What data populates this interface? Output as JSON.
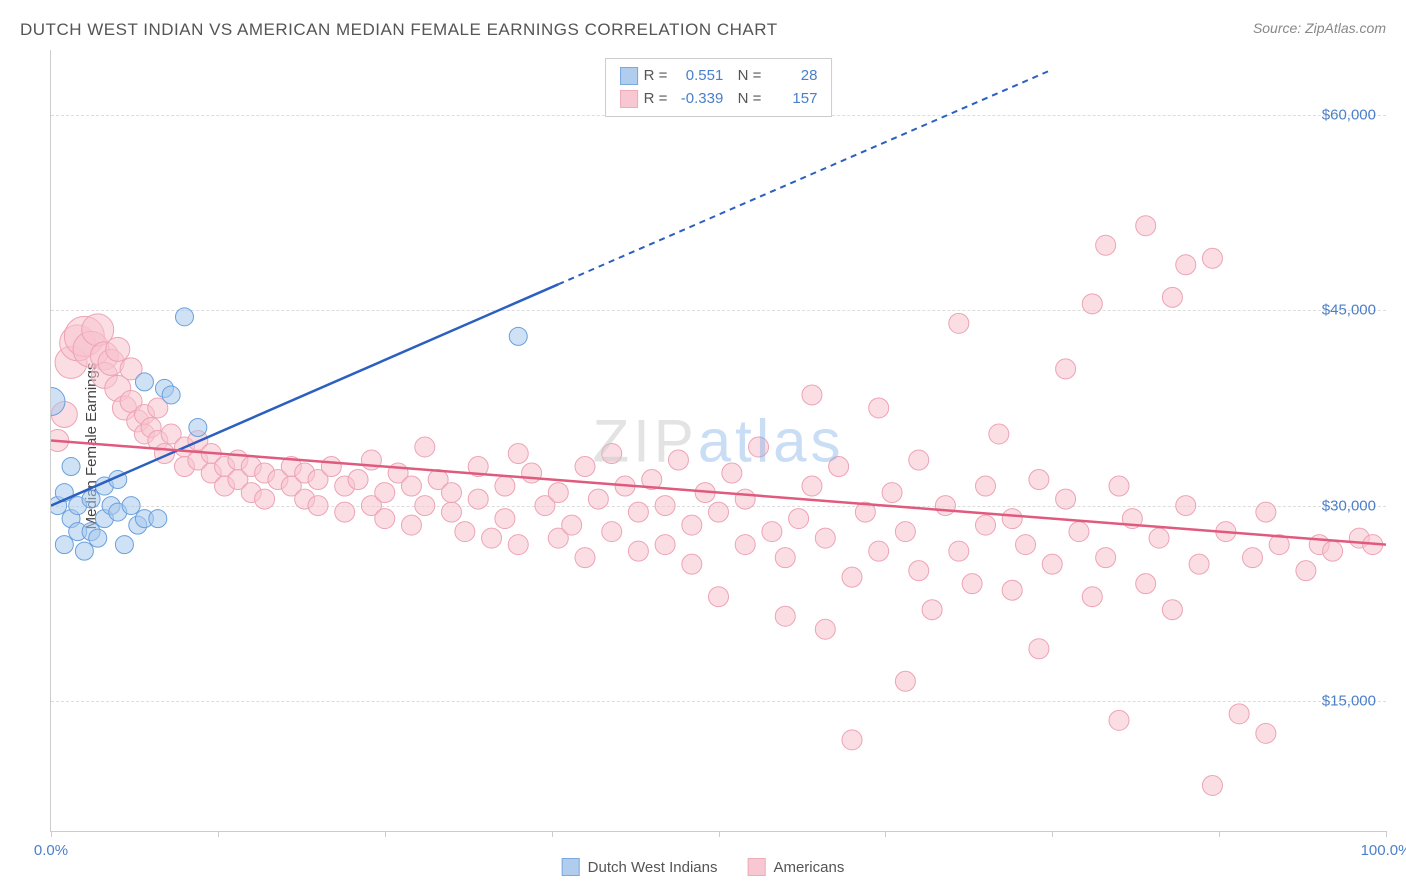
{
  "title": "DUTCH WEST INDIAN VS AMERICAN MEDIAN FEMALE EARNINGS CORRELATION CHART",
  "source": "Source: ZipAtlas.com",
  "watermark_main": "ZIP",
  "watermark_sub": "atlas",
  "ylabel": "Median Female Earnings",
  "chart": {
    "type": "scatter-correlation",
    "background_color": "#ffffff",
    "grid_color": "#dddddd",
    "axis_color": "#cccccc",
    "tick_label_color": "#4a7fc9",
    "text_color": "#555555",
    "xlim": [
      0,
      100
    ],
    "ylim": [
      5000,
      65000
    ],
    "y_ticks": [
      15000,
      30000,
      45000,
      60000
    ],
    "y_tick_labels": [
      "$15,000",
      "$30,000",
      "$45,000",
      "$60,000"
    ],
    "x_minor_ticks": [
      0,
      12.5,
      25,
      37.5,
      50,
      62.5,
      75,
      87.5,
      100
    ],
    "x_tick_labels_left": "0.0%",
    "x_tick_labels_right": "100.0%",
    "series": [
      {
        "name": "Dutch West Indians",
        "fill_color": "#a8c8ed",
        "fill_opacity": 0.55,
        "stroke_color": "#6aa0de",
        "line_color": "#2b5fc0",
        "marker_radius": 9,
        "r_value": "0.551",
        "n_value": "28",
        "trend": {
          "x1": 0,
          "y1": 30000,
          "x2": 38,
          "y2": 47000,
          "x2_ext": 75,
          "y2_ext": 63500,
          "dash": "6,5"
        },
        "points": [
          [
            0,
            38000,
            14
          ],
          [
            0.5,
            30000,
            9
          ],
          [
            1,
            31000,
            9
          ],
          [
            1,
            27000,
            9
          ],
          [
            1.5,
            29000,
            9
          ],
          [
            1.5,
            33000,
            9
          ],
          [
            2,
            28000,
            9
          ],
          [
            2,
            30000,
            9
          ],
          [
            2.5,
            26500,
            9
          ],
          [
            3,
            30500,
            9
          ],
          [
            3,
            28000,
            9
          ],
          [
            3.5,
            27500,
            9
          ],
          [
            4,
            29000,
            9
          ],
          [
            4,
            31500,
            9
          ],
          [
            4.5,
            30000,
            9
          ],
          [
            5,
            32000,
            9
          ],
          [
            5,
            29500,
            9
          ],
          [
            5.5,
            27000,
            9
          ],
          [
            6,
            30000,
            9
          ],
          [
            6.5,
            28500,
            9
          ],
          [
            7,
            29000,
            9
          ],
          [
            7,
            39500,
            9
          ],
          [
            8,
            29000,
            9
          ],
          [
            8.5,
            39000,
            9
          ],
          [
            9,
            38500,
            9
          ],
          [
            10,
            44500,
            9
          ],
          [
            11,
            36000,
            9
          ],
          [
            35,
            43000,
            9
          ]
        ]
      },
      {
        "name": "Americans",
        "fill_color": "#f7c2ce",
        "fill_opacity": 0.55,
        "stroke_color": "#eda3b4",
        "line_color": "#e05a7e",
        "marker_radius": 10,
        "r_value": "-0.339",
        "n_value": "157",
        "trend": {
          "x1": 0,
          "y1": 35000,
          "x2": 100,
          "y2": 27000
        },
        "points": [
          [
            0.5,
            35000,
            11
          ],
          [
            1,
            37000,
            13
          ],
          [
            1.5,
            41000,
            16
          ],
          [
            2,
            42500,
            18
          ],
          [
            2.5,
            43000,
            20
          ],
          [
            3,
            42000,
            18
          ],
          [
            3.5,
            43500,
            16
          ],
          [
            4,
            41500,
            14
          ],
          [
            4,
            40000,
            13
          ],
          [
            4.5,
            41000,
            13
          ],
          [
            5,
            39000,
            13
          ],
          [
            5,
            42000,
            12
          ],
          [
            5.5,
            37500,
            12
          ],
          [
            6,
            38000,
            11
          ],
          [
            6,
            40500,
            11
          ],
          [
            6.5,
            36500,
            11
          ],
          [
            7,
            37000,
            10
          ],
          [
            7,
            35500,
            10
          ],
          [
            7.5,
            36000,
            10
          ],
          [
            8,
            35000,
            10
          ],
          [
            8,
            37500,
            10
          ],
          [
            8.5,
            34000,
            10
          ],
          [
            9,
            35500,
            10
          ],
          [
            10,
            34500,
            10
          ],
          [
            10,
            33000,
            10
          ],
          [
            11,
            33500,
            10
          ],
          [
            11,
            35000,
            10
          ],
          [
            12,
            34000,
            10
          ],
          [
            12,
            32500,
            10
          ],
          [
            13,
            33000,
            10
          ],
          [
            13,
            31500,
            10
          ],
          [
            14,
            33500,
            10
          ],
          [
            14,
            32000,
            10
          ],
          [
            15,
            33000,
            10
          ],
          [
            15,
            31000,
            10
          ],
          [
            16,
            32500,
            10
          ],
          [
            16,
            30500,
            10
          ],
          [
            17,
            32000,
            10
          ],
          [
            18,
            31500,
            10
          ],
          [
            18,
            33000,
            10
          ],
          [
            19,
            30500,
            10
          ],
          [
            19,
            32500,
            10
          ],
          [
            20,
            32000,
            10
          ],
          [
            20,
            30000,
            10
          ],
          [
            21,
            33000,
            10
          ],
          [
            22,
            31500,
            10
          ],
          [
            22,
            29500,
            10
          ],
          [
            23,
            32000,
            10
          ],
          [
            24,
            30000,
            10
          ],
          [
            24,
            33500,
            10
          ],
          [
            25,
            31000,
            10
          ],
          [
            25,
            29000,
            10
          ],
          [
            26,
            32500,
            10
          ],
          [
            27,
            31500,
            10
          ],
          [
            27,
            28500,
            10
          ],
          [
            28,
            30000,
            10
          ],
          [
            28,
            34500,
            10
          ],
          [
            29,
            32000,
            10
          ],
          [
            30,
            29500,
            10
          ],
          [
            30,
            31000,
            10
          ],
          [
            31,
            28000,
            10
          ],
          [
            32,
            30500,
            10
          ],
          [
            32,
            33000,
            10
          ],
          [
            33,
            27500,
            10
          ],
          [
            34,
            31500,
            10
          ],
          [
            34,
            29000,
            10
          ],
          [
            35,
            34000,
            10
          ],
          [
            35,
            27000,
            10
          ],
          [
            36,
            32500,
            10
          ],
          [
            37,
            30000,
            10
          ],
          [
            38,
            27500,
            10
          ],
          [
            38,
            31000,
            10
          ],
          [
            39,
            28500,
            10
          ],
          [
            40,
            33000,
            10
          ],
          [
            40,
            26000,
            10
          ],
          [
            41,
            30500,
            10
          ],
          [
            42,
            28000,
            10
          ],
          [
            42,
            34000,
            10
          ],
          [
            43,
            31500,
            10
          ],
          [
            44,
            26500,
            10
          ],
          [
            44,
            29500,
            10
          ],
          [
            45,
            32000,
            10
          ],
          [
            46,
            27000,
            10
          ],
          [
            46,
            30000,
            10
          ],
          [
            47,
            33500,
            10
          ],
          [
            48,
            28500,
            10
          ],
          [
            48,
            25500,
            10
          ],
          [
            49,
            31000,
            10
          ],
          [
            50,
            23000,
            10
          ],
          [
            50,
            29500,
            10
          ],
          [
            51,
            32500,
            10
          ],
          [
            52,
            27000,
            10
          ],
          [
            52,
            30500,
            10
          ],
          [
            53,
            34500,
            10
          ],
          [
            54,
            28000,
            10
          ],
          [
            55,
            21500,
            10
          ],
          [
            55,
            26000,
            10
          ],
          [
            56,
            29000,
            10
          ],
          [
            57,
            38500,
            10
          ],
          [
            57,
            31500,
            10
          ],
          [
            58,
            20500,
            10
          ],
          [
            58,
            27500,
            10
          ],
          [
            59,
            33000,
            10
          ],
          [
            60,
            12000,
            10
          ],
          [
            60,
            24500,
            10
          ],
          [
            61,
            29500,
            10
          ],
          [
            62,
            37500,
            10
          ],
          [
            62,
            26500,
            10
          ],
          [
            63,
            31000,
            10
          ],
          [
            64,
            28000,
            10
          ],
          [
            64,
            16500,
            10
          ],
          [
            65,
            25000,
            10
          ],
          [
            65,
            33500,
            10
          ],
          [
            66,
            22000,
            10
          ],
          [
            67,
            30000,
            10
          ],
          [
            68,
            44000,
            10
          ],
          [
            68,
            26500,
            10
          ],
          [
            69,
            24000,
            10
          ],
          [
            70,
            31500,
            10
          ],
          [
            70,
            28500,
            10
          ],
          [
            71,
            35500,
            10
          ],
          [
            72,
            23500,
            10
          ],
          [
            72,
            29000,
            10
          ],
          [
            73,
            27000,
            10
          ],
          [
            74,
            32000,
            10
          ],
          [
            74,
            19000,
            10
          ],
          [
            75,
            25500,
            10
          ],
          [
            76,
            30500,
            10
          ],
          [
            76,
            40500,
            10
          ],
          [
            77,
            28000,
            10
          ],
          [
            78,
            45500,
            10
          ],
          [
            78,
            23000,
            10
          ],
          [
            79,
            26000,
            10
          ],
          [
            79,
            50000,
            10
          ],
          [
            80,
            31500,
            10
          ],
          [
            80,
            13500,
            10
          ],
          [
            81,
            29000,
            10
          ],
          [
            82,
            51500,
            10
          ],
          [
            82,
            24000,
            10
          ],
          [
            83,
            27500,
            10
          ],
          [
            84,
            46000,
            10
          ],
          [
            84,
            22000,
            10
          ],
          [
            85,
            48500,
            10
          ],
          [
            85,
            30000,
            10
          ],
          [
            86,
            25500,
            10
          ],
          [
            87,
            49000,
            10
          ],
          [
            87,
            8500,
            10
          ],
          [
            88,
            28000,
            10
          ],
          [
            89,
            14000,
            10
          ],
          [
            90,
            26000,
            10
          ],
          [
            91,
            12500,
            10
          ],
          [
            91,
            29500,
            10
          ],
          [
            92,
            27000,
            10
          ],
          [
            94,
            25000,
            10
          ],
          [
            95,
            27000,
            10
          ],
          [
            96,
            26500,
            10
          ],
          [
            98,
            27500,
            10
          ],
          [
            99,
            27000,
            10
          ]
        ]
      }
    ]
  },
  "bottom_legend": {
    "item1": "Dutch West Indians",
    "item2": "Americans"
  }
}
